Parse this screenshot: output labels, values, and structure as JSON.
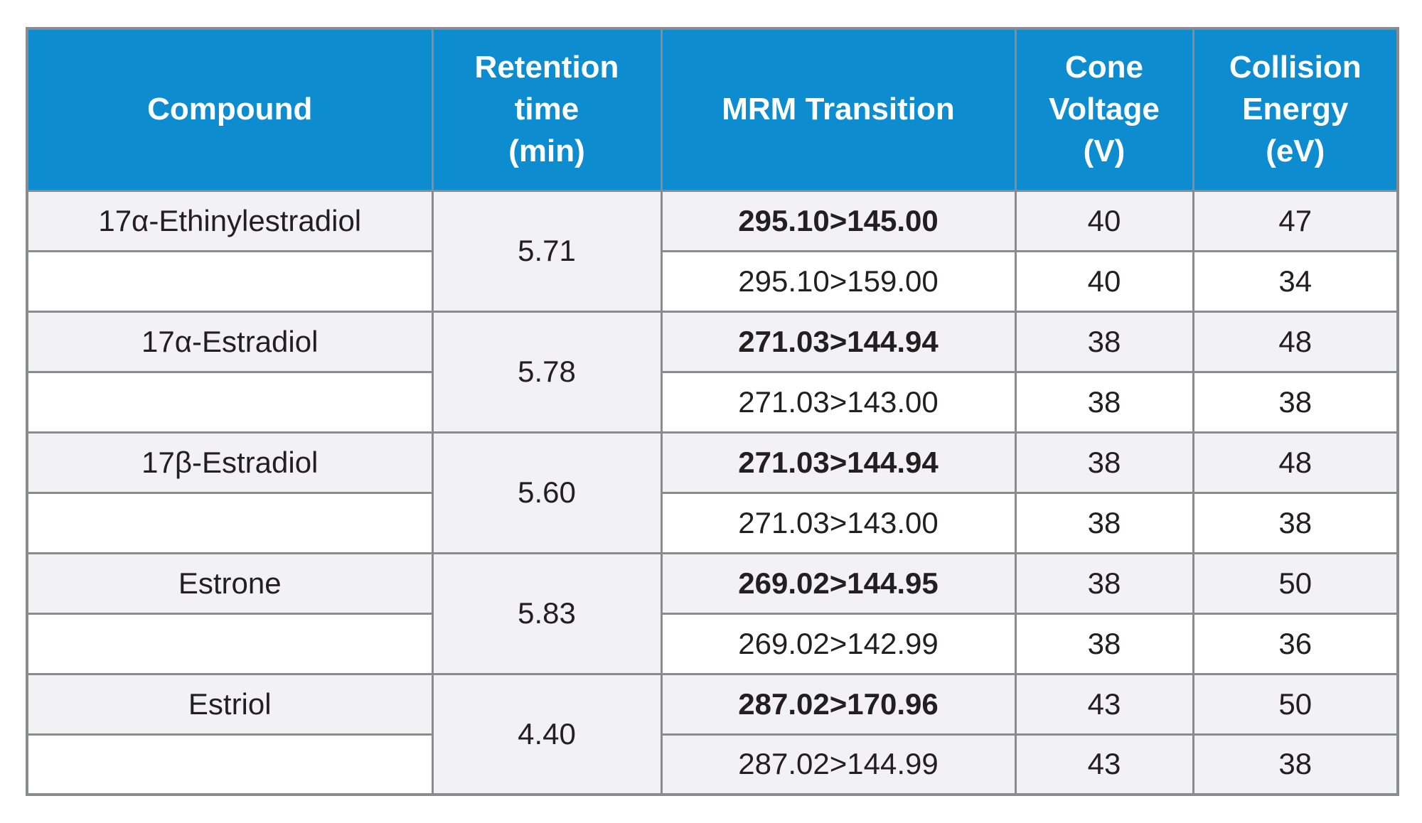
{
  "table": {
    "title": "MRM transitions table",
    "headers": {
      "compound": "Compound",
      "retention_time": "Retention\ntime\n(min)",
      "mrm_transition": "MRM Transition",
      "cone_voltage": "Cone\nVoltage\n(V)",
      "collision_energy": "Collision\nEnergy\n(eV)"
    },
    "compounds": [
      {
        "name": "17α-Ethinylestradiol",
        "retention_time": "5.71",
        "transitions": [
          {
            "mrm": "295.10>145.00",
            "cone_voltage": "40",
            "collision_energy": "47",
            "bold": true
          },
          {
            "mrm": "295.10>159.00",
            "cone_voltage": "40",
            "collision_energy": "34",
            "bold": false
          }
        ]
      },
      {
        "name": "17α-Estradiol",
        "retention_time": "5.78",
        "transitions": [
          {
            "mrm": "271.03>144.94",
            "cone_voltage": "38",
            "collision_energy": "48",
            "bold": true
          },
          {
            "mrm": "271.03>143.00",
            "cone_voltage": "38",
            "collision_energy": "38",
            "bold": false
          }
        ]
      },
      {
        "name": "17β-Estradiol",
        "retention_time": "5.60",
        "transitions": [
          {
            "mrm": "271.03>144.94",
            "cone_voltage": "38",
            "collision_energy": "48",
            "bold": true
          },
          {
            "mrm": "271.03>143.00",
            "cone_voltage": "38",
            "collision_energy": "38",
            "bold": false
          }
        ]
      },
      {
        "name": "Estrone",
        "retention_time": "5.83",
        "transitions": [
          {
            "mrm": "269.02>144.95",
            "cone_voltage": "38",
            "collision_energy": "50",
            "bold": true
          },
          {
            "mrm": "269.02>142.99",
            "cone_voltage": "38",
            "collision_energy": "36",
            "bold": false
          }
        ]
      },
      {
        "name": "Estriol",
        "retention_time": "4.40",
        "transitions": [
          {
            "mrm": "287.02>170.96",
            "cone_voltage": "43",
            "collision_energy": "50",
            "bold": true
          },
          {
            "mrm": "287.02>144.99",
            "cone_voltage": "43",
            "collision_energy": "38",
            "bold": false
          }
        ]
      }
    ],
    "colors": {
      "header_bg": "#0d8cd0",
      "header_text": "#ffffff",
      "shaded_row_bg": "#f2f2f4",
      "white_row_bg": "#ffffff",
      "border": "#8a8b8f",
      "body_text": "#231f20"
    }
  }
}
